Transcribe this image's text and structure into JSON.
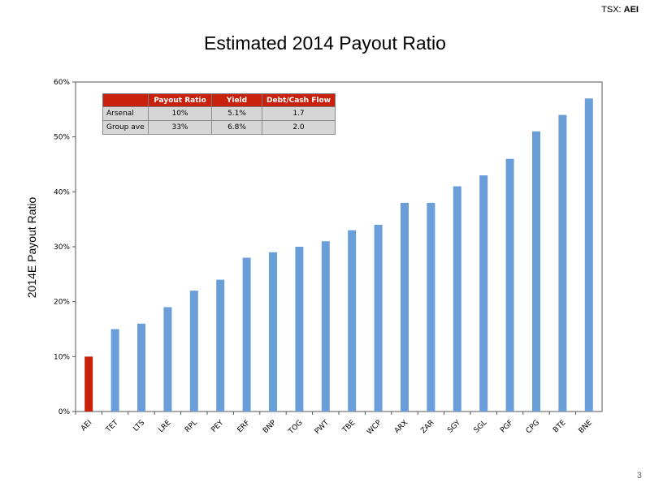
{
  "header": {
    "ticker_prefix": "TSX:",
    "ticker_symbol": "AEI"
  },
  "page_number": "3",
  "summary_table": {
    "headers": [
      "",
      "Payout Ratio",
      "Yield",
      "Debt/Cash Flow"
    ],
    "rows": [
      [
        "Arsenal",
        "10%",
        "5.1%",
        "1.7"
      ],
      [
        "Group ave",
        "33%",
        "6.8%",
        "2.0"
      ]
    ]
  },
  "chart_data": {
    "type": "bar",
    "title": "Estimated 2014 Payout Ratio",
    "xlabel": "",
    "ylabel": "2014E Payout Ratio",
    "categories": [
      "AEI",
      "TET",
      "LTS",
      "LRE",
      "RPL",
      "PEY",
      "ERF",
      "BNP",
      "TOG",
      "PWT",
      "TBE",
      "WCP",
      "ARX",
      "ZAR",
      "SGY",
      "SGL",
      "PGF",
      "CPG",
      "BTE",
      "BNE"
    ],
    "values": [
      10,
      15,
      16,
      19,
      22,
      24,
      28,
      29,
      30,
      31,
      33,
      34,
      38,
      38,
      41,
      43,
      46,
      51,
      54,
      57
    ],
    "value_unit": "%",
    "highlight_category": "AEI",
    "ylim": [
      0,
      60
    ],
    "yticks": [
      "0%",
      "10%",
      "20%",
      "30%",
      "40%",
      "50%",
      "60%"
    ],
    "grid": false,
    "colors": {
      "bar": "#6a9ed9",
      "highlight": "#c8220d",
      "axis": "#555555"
    }
  }
}
